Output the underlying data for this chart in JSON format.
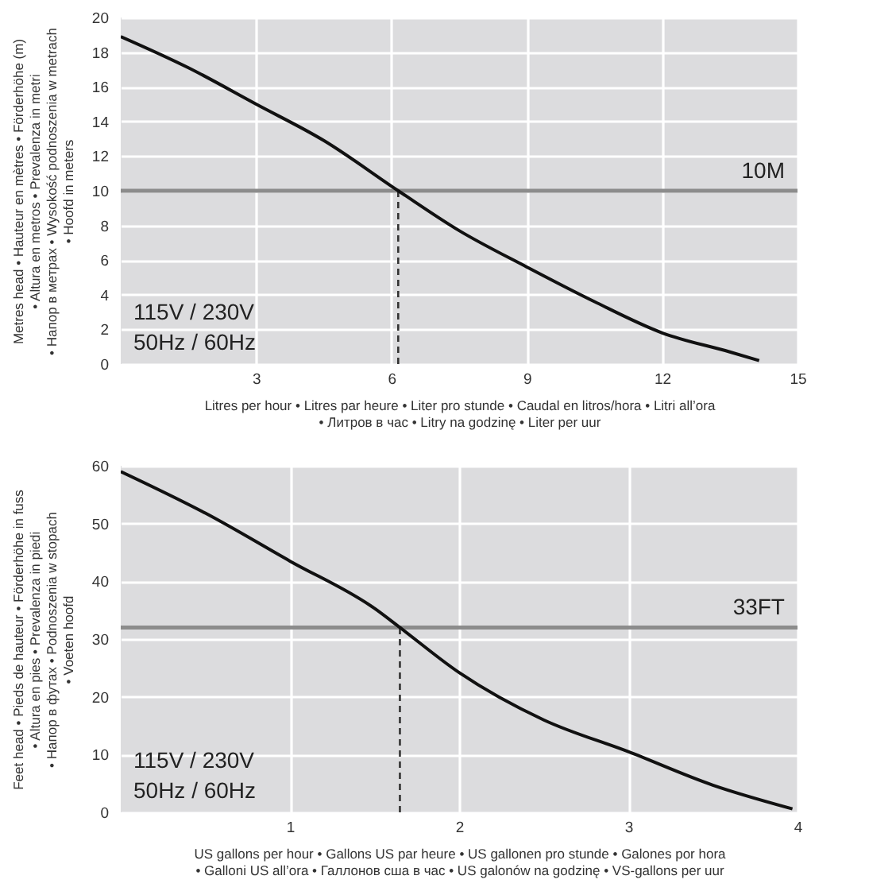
{
  "chart_data": [
    {
      "type": "line",
      "xlabel": "Litres per hour • Litres par heure • Liter pro stunde • Caudal en litros/hora • Litri all’ora • Литров в час • Litry na godzinę • Liter per uur",
      "ylabel": "Metres head • Hauteur en mètres • Förderhöhe (m) • Altura en metros • Prevalenza in metri • Напор в метрах • Wysokość podnoszenia w metrach • Hoofd in meters",
      "x": [
        0,
        1.5,
        3,
        4.5,
        6.15,
        7.5,
        9,
        10.5,
        12,
        13.5,
        14.15
      ],
      "series": [
        {
          "color": "#111111",
          "values": [
            18.9,
            17.1,
            15,
            12.9,
            10,
            7.7,
            5.6,
            3.6,
            1.8,
            0.7,
            0.2
          ]
        }
      ],
      "xlim": [
        0,
        15
      ],
      "xticks": [
        3,
        6,
        9,
        12,
        15
      ],
      "ylim": [
        0,
        20
      ],
      "yticks": [
        0,
        2,
        4,
        6,
        8,
        10,
        12,
        14,
        16,
        18,
        20
      ],
      "grid": true,
      "marker": "none",
      "line_style": "solid",
      "ref_lines": [
        {
          "axis": "y",
          "value": 10,
          "label": "10M",
          "color": "#8c8c8c"
        },
        {
          "axis": "x",
          "value": 6.15,
          "color": "#333333",
          "line_style": "dashed"
        }
      ],
      "annotations": [
        "115V / 230V",
        "50Hz / 60Hz"
      ]
    },
    {
      "type": "line",
      "xlabel": "US gallons per hour • Gallons US par heure • US gallonen pro stunde • Galones por hora • Galloni US all’ora • Галлонов сша в час • US galonów na godzinę • VS-gallons per uur",
      "ylabel": "Feet head • Pieds de hauteur • Förderhöhe in fuss • Altura en pies • Prevalenza in piedi • Напор в футах • Podnoszenia w stopach • Voeten hoofd",
      "x": [
        0,
        0.5,
        1,
        1.5,
        1.65,
        2,
        2.5,
        3,
        3.5,
        3.97
      ],
      "series": [
        {
          "color": "#111111",
          "values": [
            59,
            51.8,
            43.5,
            35.3,
            32,
            24.2,
            16,
            10.5,
            4.7,
            0.6
          ]
        }
      ],
      "xlim": [
        0,
        4
      ],
      "xticks": [
        1,
        2,
        3,
        4
      ],
      "ylim": [
        0,
        60
      ],
      "yticks": [
        0,
        10,
        20,
        30,
        40,
        50,
        60
      ],
      "grid": true,
      "marker": "none",
      "line_style": "solid",
      "ref_lines": [
        {
          "axis": "y",
          "value": 32,
          "label": "33FT",
          "color": "#8c8c8c"
        },
        {
          "axis": "x",
          "value": 1.65,
          "color": "#333333",
          "line_style": "dashed"
        }
      ],
      "annotations": [
        "115V / 230V",
        "50Hz / 60Hz"
      ]
    }
  ]
}
